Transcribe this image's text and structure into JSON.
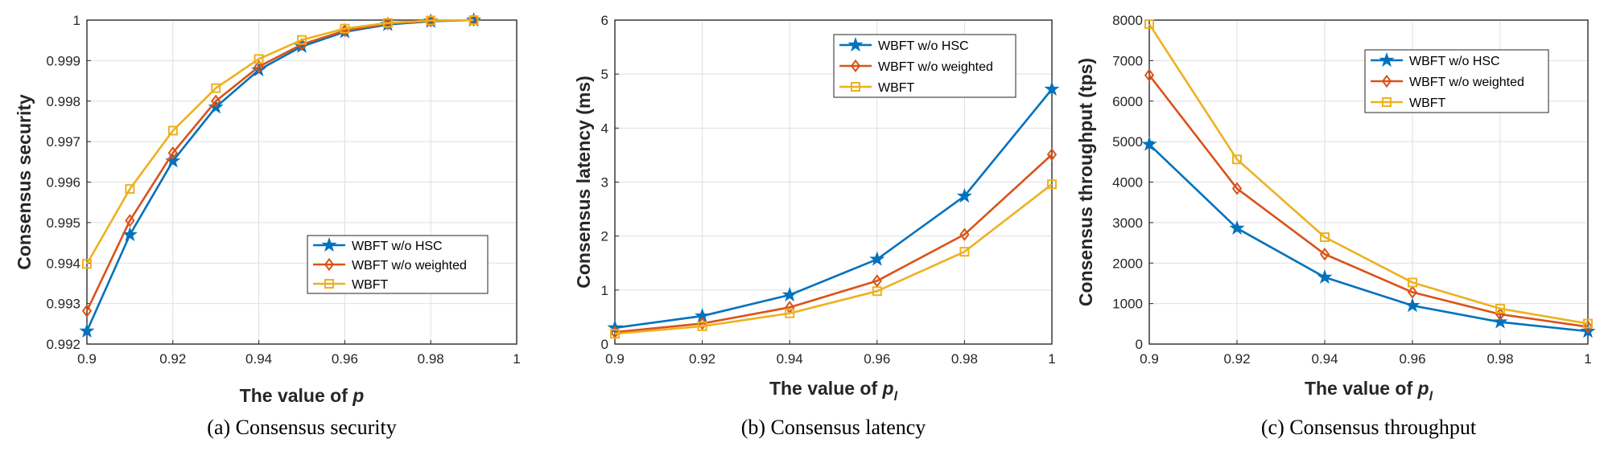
{
  "colors": {
    "series_hsc": "#0072BD",
    "series_weighted": "#D95319",
    "series_wbft": "#EDB120",
    "axis": "#262626",
    "grid": "#dfdfdf"
  },
  "chart_data": [
    {
      "type": "line",
      "caption": "(a) Consensus security",
      "xlabel_prefix": "The value of ",
      "xlabel_var": "p",
      "xlabel_sub": "",
      "ylabel": "Consensus security",
      "xlim": [
        0.9,
        1
      ],
      "ylim": [
        0.992,
        1
      ],
      "xticks": [
        "0.9",
        "0.92",
        "0.94",
        "0.96",
        "0.98",
        "1"
      ],
      "yticks": [
        "0.992",
        "0.993",
        "0.994",
        "0.995",
        "0.996",
        "0.997",
        "0.998",
        "0.999",
        "1"
      ],
      "legend_position": "lower-right",
      "x": [
        0.9,
        0.91,
        0.92,
        0.93,
        0.94,
        0.95,
        0.96,
        0.97,
        0.98,
        0.99
      ],
      "series": [
        {
          "name": "WBFT w/o HSC",
          "marker": "star",
          "values": [
            0.99232,
            0.9947,
            0.99652,
            0.99785,
            0.99877,
            0.99935,
            0.99971,
            0.99989,
            0.99997,
            1.0
          ]
        },
        {
          "name": "WBFT w/o weighted",
          "marker": "diamond",
          "values": [
            0.99282,
            0.99505,
            0.99672,
            0.998,
            0.99885,
            0.9994,
            0.99974,
            0.99991,
            0.99998,
            1.0
          ]
        },
        {
          "name": "WBFT",
          "marker": "square",
          "values": [
            0.99398,
            0.99583,
            0.99727,
            0.99832,
            0.99904,
            0.99951,
            0.99979,
            0.99993,
            0.99999,
            1.0
          ]
        }
      ]
    },
    {
      "type": "line",
      "caption": "(b) Consensus latency",
      "xlabel_prefix": "The value of ",
      "xlabel_var": "p",
      "xlabel_sub": "l",
      "ylabel": "Consensus latency (ms)",
      "xlim": [
        0.9,
        1
      ],
      "ylim": [
        0,
        6
      ],
      "xticks": [
        "0.9",
        "0.92",
        "0.94",
        "0.96",
        "0.98",
        "1"
      ],
      "yticks": [
        "0",
        "1",
        "2",
        "3",
        "4",
        "5",
        "6"
      ],
      "legend_position": "top-right",
      "x": [
        0.9,
        0.92,
        0.94,
        0.96,
        0.98,
        1.0
      ],
      "series": [
        {
          "name": "WBFT w/o HSC",
          "marker": "star",
          "values": [
            0.3,
            0.52,
            0.91,
            1.57,
            2.74,
            4.72
          ]
        },
        {
          "name": "WBFT w/o weighted",
          "marker": "diamond",
          "values": [
            0.22,
            0.38,
            0.68,
            1.17,
            2.03,
            3.51
          ]
        },
        {
          "name": "WBFT",
          "marker": "square",
          "values": [
            0.19,
            0.33,
            0.57,
            0.98,
            1.71,
            2.96
          ]
        }
      ]
    },
    {
      "type": "line",
      "caption": "(c) Consensus throughput",
      "xlabel_prefix": "The value of ",
      "xlabel_var": "p",
      "xlabel_sub": "l",
      "ylabel": "Consensus throughput (tps)",
      "xlim": [
        0.9,
        1
      ],
      "ylim": [
        0,
        8000
      ],
      "xticks": [
        "0.9",
        "0.92",
        "0.94",
        "0.96",
        "0.98",
        "1"
      ],
      "yticks": [
        "0",
        "1000",
        "2000",
        "3000",
        "4000",
        "5000",
        "6000",
        "7000",
        "8000"
      ],
      "legend_position": "top-right",
      "x": [
        0.9,
        0.92,
        0.94,
        0.96,
        0.98,
        1.0
      ],
      "series": [
        {
          "name": "WBFT w/o HSC",
          "marker": "star",
          "values": [
            4930,
            2860,
            1650,
            950,
            545,
            315
          ]
        },
        {
          "name": "WBFT w/o weighted",
          "marker": "diamond",
          "values": [
            6640,
            3840,
            2220,
            1280,
            735,
            425
          ]
        },
        {
          "name": "WBFT",
          "marker": "square",
          "values": [
            7900,
            4560,
            2640,
            1520,
            875,
            505
          ]
        }
      ]
    }
  ]
}
